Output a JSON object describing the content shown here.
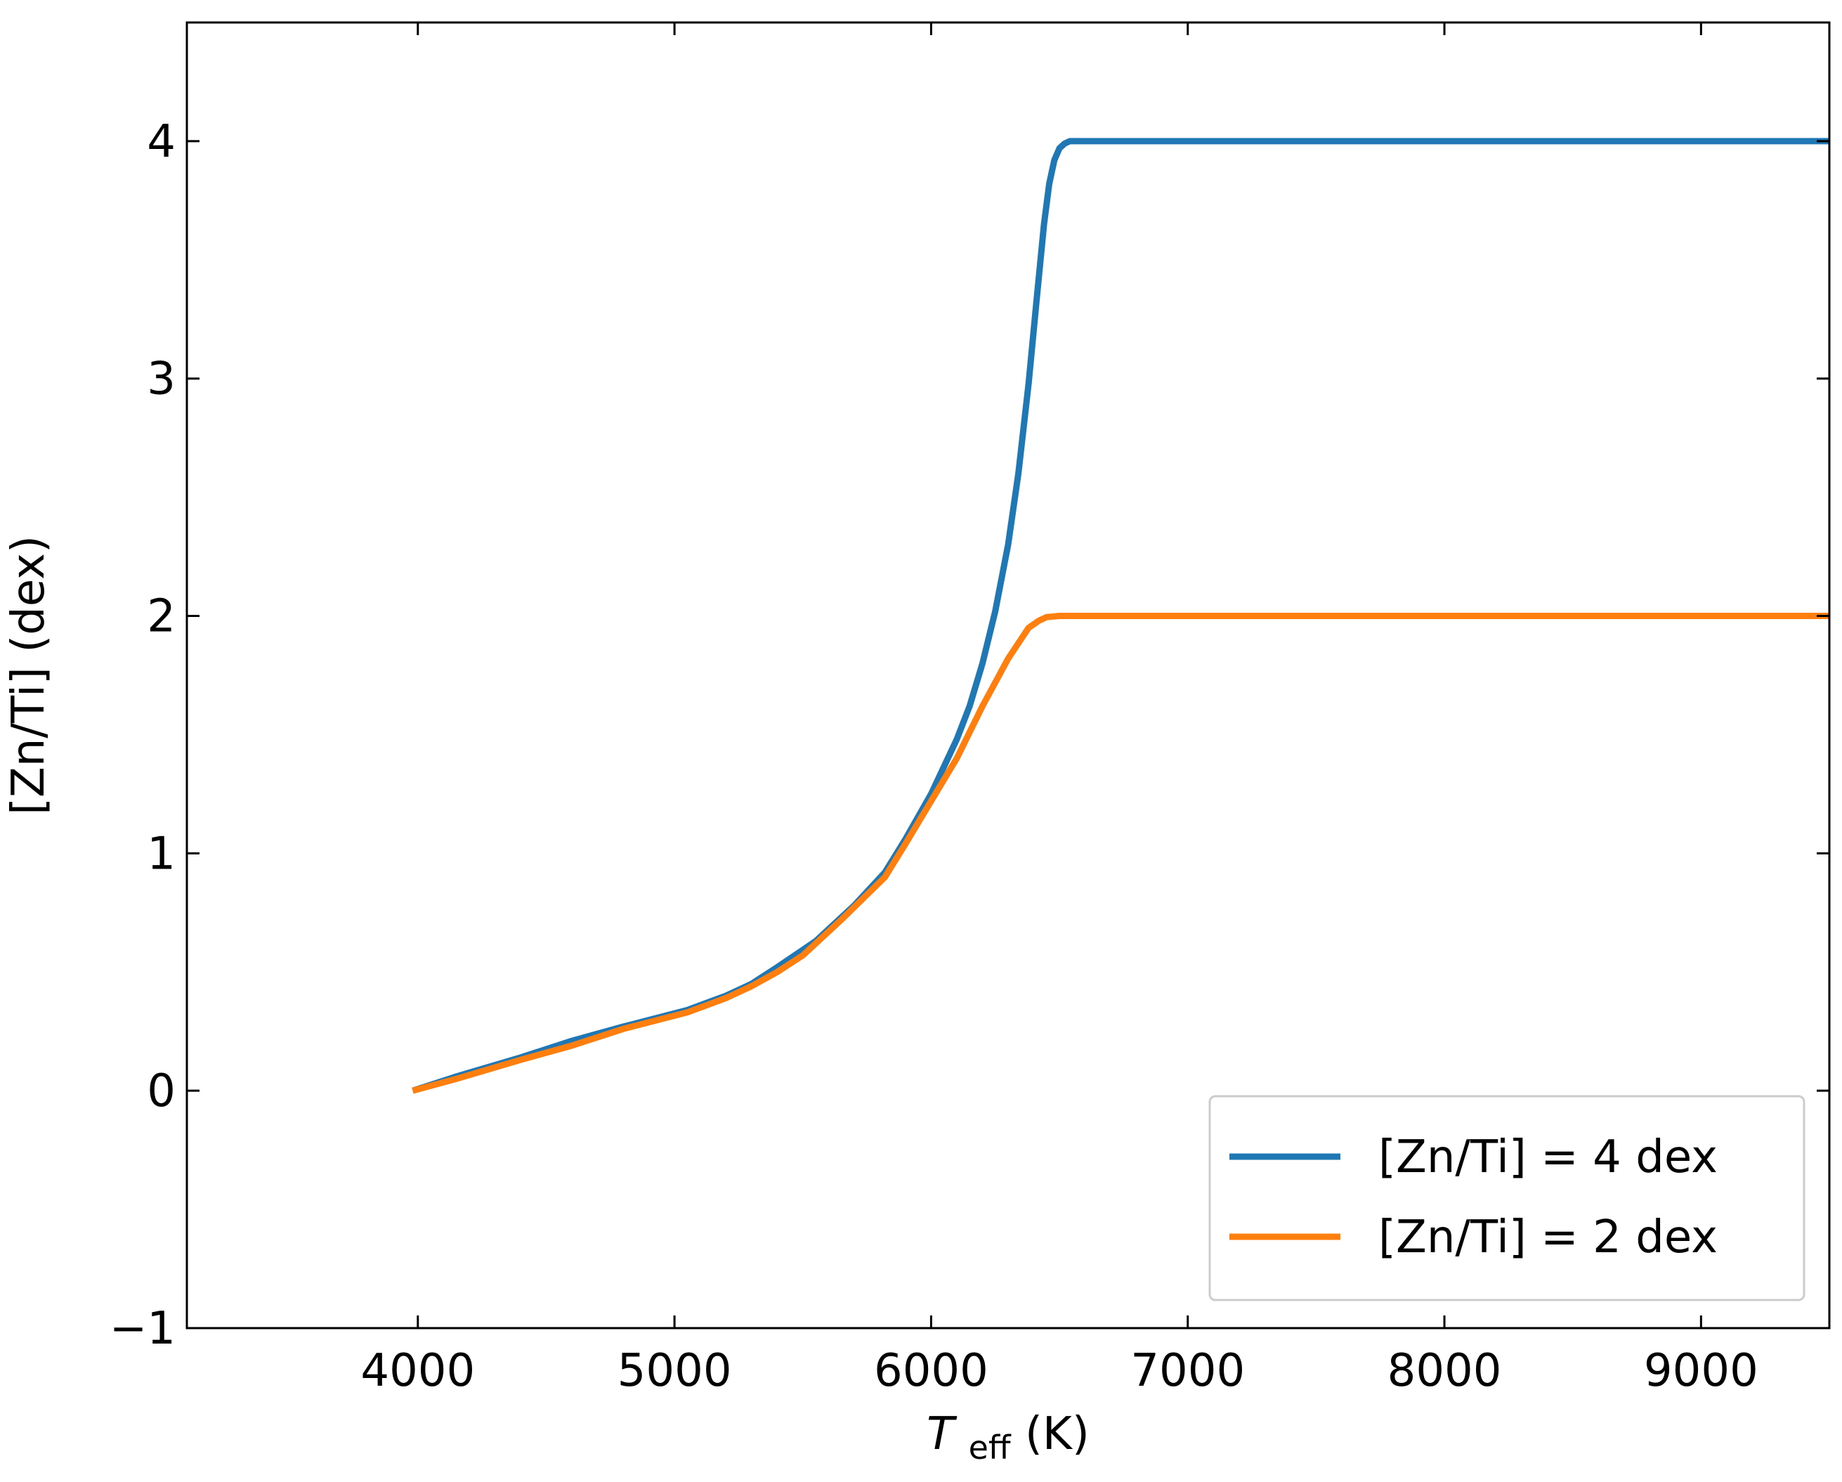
{
  "chart_data": {
    "type": "line",
    "title": "",
    "xlabel": {
      "symbol": "T",
      "subscript": "eff",
      "unit": "(K)"
    },
    "ylabel": "[Zn/Ti] (dex)",
    "xlim": [
      3100,
      9500
    ],
    "ylim": [
      -1,
      4.5
    ],
    "x_ticks": [
      {
        "value": 4000,
        "label": "4000"
      },
      {
        "value": 5000,
        "label": "5000"
      },
      {
        "value": 6000,
        "label": "6000"
      },
      {
        "value": 7000,
        "label": "7000"
      },
      {
        "value": 8000,
        "label": "8000"
      },
      {
        "value": 9000,
        "label": "9000"
      }
    ],
    "y_ticks": [
      {
        "value": -1,
        "label": "−1"
      },
      {
        "value": 0,
        "label": "0"
      },
      {
        "value": 1,
        "label": "1"
      },
      {
        "value": 2,
        "label": "2"
      },
      {
        "value": 3,
        "label": "3"
      },
      {
        "value": 4,
        "label": "4"
      }
    ],
    "grid": false,
    "legend_position": "lower-right",
    "series": [
      {
        "name": "[Zn/Ti] = 4 dex",
        "color": "#1f77b4",
        "x": [
          3980,
          4150,
          4400,
          4600,
          4800,
          5050,
          5200,
          5300,
          5400,
          5550,
          5700,
          5820,
          5900,
          6000,
          6100,
          6150,
          6200,
          6250,
          6300,
          6340,
          6380,
          6410,
          6440,
          6460,
          6480,
          6500,
          6520,
          6540,
          6560,
          6600,
          7000,
          8000,
          9000,
          9500
        ],
        "y": [
          0.0,
          0.06,
          0.14,
          0.21,
          0.27,
          0.34,
          0.4,
          0.45,
          0.52,
          0.63,
          0.78,
          0.92,
          1.06,
          1.25,
          1.48,
          1.62,
          1.8,
          2.02,
          2.3,
          2.6,
          2.98,
          3.32,
          3.65,
          3.82,
          3.92,
          3.97,
          3.99,
          4.0,
          4.0,
          4.0,
          4.0,
          4.0,
          4.0,
          4.0
        ]
      },
      {
        "name": "[Zn/Ti] = 2 dex",
        "color": "#ff7f0e",
        "x": [
          3980,
          4150,
          4400,
          4600,
          4800,
          5050,
          5200,
          5300,
          5400,
          5500,
          5650,
          5820,
          5900,
          6000,
          6100,
          6200,
          6300,
          6380,
          6420,
          6450,
          6500,
          6550,
          6600,
          7000,
          8000,
          9000,
          9500
        ],
        "y": [
          0.0,
          0.05,
          0.13,
          0.19,
          0.26,
          0.33,
          0.39,
          0.44,
          0.5,
          0.57,
          0.72,
          0.9,
          1.04,
          1.22,
          1.4,
          1.62,
          1.82,
          1.95,
          1.98,
          1.995,
          2.0,
          2.0,
          2.0,
          2.0,
          2.0,
          2.0,
          2.0
        ]
      }
    ]
  }
}
